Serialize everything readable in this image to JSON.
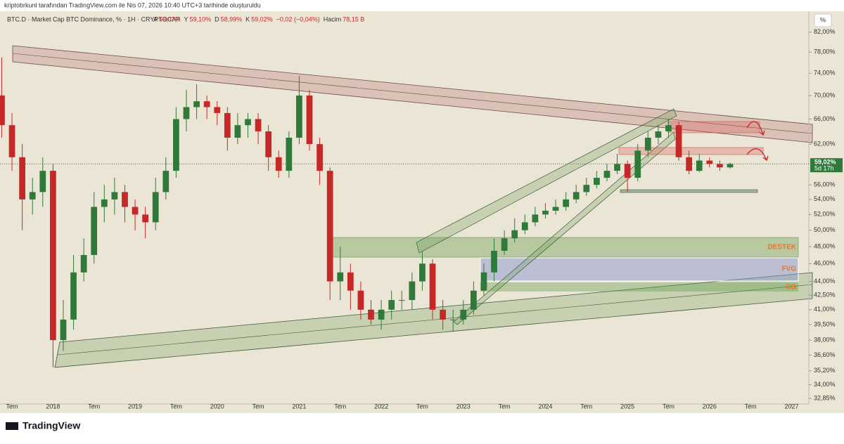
{
  "header": {
    "credit": "kriptobrkunl tarafından TradingView.com ile Nis 07, 2026 10:40 UTC+3 tarihinde oluşturuldu",
    "symbol": "BTC.D · Market Cap BTC Dominance, % · 1H · CRYPTOCAP",
    "ohlc": [
      {
        "label": "A",
        "value": "59,07%"
      },
      {
        "label": "Y",
        "value": "59,10%"
      },
      {
        "label": "D",
        "value": "58,99%"
      },
      {
        "label": "K",
        "value": "59,02%"
      }
    ],
    "change": "−0,02 (−0,04%)",
    "volume_label": "Hacim",
    "volume": "78,15 B",
    "unit_button": "%"
  },
  "chart_data": {
    "type": "candlestick",
    "log_scale": true,
    "up_color": "#2f7a3a",
    "down_color": "#c62828",
    "x": [
      2017.375,
      2017.5,
      2017.625,
      2017.75,
      2017.875,
      2018.0,
      2018.125,
      2018.25,
      2018.375,
      2018.5,
      2018.625,
      2018.75,
      2018.875,
      2019.0,
      2019.125,
      2019.25,
      2019.375,
      2019.5,
      2019.625,
      2019.75,
      2019.875,
      2020.0,
      2020.125,
      2020.25,
      2020.375,
      2020.5,
      2020.625,
      2020.75,
      2020.875,
      2021.0,
      2021.125,
      2021.25,
      2021.375,
      2021.5,
      2021.625,
      2021.75,
      2021.875,
      2022.0,
      2022.125,
      2022.25,
      2022.375,
      2022.5,
      2022.625,
      2022.75,
      2022.875,
      2023.0,
      2023.125,
      2023.25,
      2023.375,
      2023.5,
      2023.625,
      2023.75,
      2023.875,
      2024.0,
      2024.125,
      2024.25,
      2024.375,
      2024.5,
      2024.625,
      2024.75,
      2024.875,
      2025.0,
      2025.125,
      2025.25,
      2025.375,
      2025.5,
      2025.625,
      2025.75,
      2025.875,
      2026.0,
      2026.125,
      2026.25
    ],
    "open": [
      70,
      65,
      60,
      54,
      55,
      58,
      38,
      40,
      45,
      47,
      53,
      54,
      55,
      53,
      52,
      51,
      55,
      58,
      66,
      68,
      69,
      68,
      67,
      63,
      65,
      66,
      64,
      60,
      58,
      63,
      70,
      62,
      58,
      44,
      45,
      43,
      41,
      40,
      41,
      42,
      42,
      44,
      46,
      41,
      40,
      40,
      41,
      43,
      45,
      47.5,
      49,
      50,
      51,
      52,
      52.5,
      53,
      54,
      55,
      56,
      57,
      58,
      59,
      57,
      61,
      63,
      64,
      65,
      60,
      58,
      59.5,
      59,
      58.5
    ],
    "high": [
      77,
      67,
      62,
      57,
      60,
      59,
      42,
      47,
      49,
      55,
      56,
      57,
      56,
      54,
      53,
      57,
      60,
      68,
      71,
      72,
      70,
      69,
      68,
      67,
      67,
      67,
      65,
      61,
      64,
      73.5,
      71,
      63,
      58.5,
      48,
      46,
      44,
      42,
      42,
      43,
      43,
      45,
      47.5,
      46.5,
      42,
      41,
      42,
      44,
      46,
      49,
      50,
      51.5,
      52,
      53,
      53.5,
      54,
      55,
      56,
      57,
      58,
      59,
      60.5,
      59.5,
      62,
      64,
      65,
      66,
      65.5,
      61,
      60.5,
      60,
      59.5,
      59.2
    ],
    "low": [
      63,
      58,
      50,
      52,
      53,
      35.5,
      37,
      39,
      44,
      46,
      51,
      52,
      51,
      50,
      49,
      50,
      54,
      57,
      64,
      66,
      66,
      65,
      61,
      62,
      63,
      62,
      58,
      57,
      57,
      62,
      61,
      56,
      42,
      42,
      41,
      40,
      39.5,
      39,
      40,
      41,
      41,
      43,
      40,
      39,
      38.8,
      39.5,
      40.5,
      42.5,
      44,
      47,
      48.5,
      49.5,
      50.5,
      51.5,
      52,
      52.5,
      53.5,
      54.5,
      55.5,
      56.5,
      57.5,
      55,
      56.5,
      60,
      62,
      63,
      59.5,
      57.5,
      57.8,
      58.5,
      58,
      58.3
    ],
    "close": [
      65,
      60,
      54,
      55,
      58,
      38,
      40,
      45,
      47,
      53,
      54,
      55,
      53,
      52,
      51,
      55,
      58,
      66,
      68,
      69,
      68,
      67,
      63,
      65,
      66,
      64,
      60,
      58,
      63,
      70,
      62,
      58,
      44,
      45,
      43,
      41,
      40,
      41,
      42,
      42,
      44,
      46,
      41,
      40,
      40,
      41,
      43,
      45,
      47.5,
      49,
      50,
      51,
      52,
      52.5,
      53,
      54,
      55,
      56,
      57,
      58,
      59,
      57,
      61,
      63,
      64,
      65,
      60,
      58,
      59.5,
      59,
      58.5,
      59
    ],
    "xlim": [
      2017.354,
      2027.21
    ],
    "xticks": [
      {
        "value": 2017.5,
        "label": "Tem"
      },
      2018,
      {
        "value": 2018.5,
        "label": "Tem"
      },
      2019,
      {
        "value": 2019.5,
        "label": "Tem"
      },
      2020,
      {
        "value": 2020.5,
        "label": "Tem"
      },
      2021,
      {
        "value": 2021.5,
        "label": "Tem"
      },
      2022,
      {
        "value": 2022.5,
        "label": "Tem"
      },
      2023,
      {
        "value": 2023.5,
        "label": "Tem"
      },
      2024,
      {
        "value": 2024.5,
        "label": "Tem"
      },
      2025,
      {
        "value": 2025.5,
        "label": "Tem"
      },
      2026,
      {
        "value": 2026.5,
        "label": "Tem"
      },
      2027
    ],
    "ylim": [
      32.4,
      84.3
    ],
    "yticks": [
      {
        "value": 82,
        "label": "82,00%"
      },
      {
        "value": 78,
        "label": "78,00%"
      },
      {
        "value": 74,
        "label": "74,00%"
      },
      {
        "value": 70,
        "label": "70,00%"
      },
      {
        "value": 66,
        "label": "66,00%"
      },
      {
        "value": 62,
        "label": "62,00%"
      },
      {
        "value": 56,
        "label": "56,00%"
      },
      {
        "value": 54,
        "label": "54,00%"
      },
      {
        "value": 52,
        "label": "52,00%"
      },
      {
        "value": 50,
        "label": "50,00%"
      },
      {
        "value": 48,
        "label": "48,00%"
      },
      {
        "value": 46,
        "label": "46,00%"
      },
      {
        "value": 44,
        "label": "44,00%"
      },
      {
        "value": 42.5,
        "label": "42,50%"
      },
      {
        "value": 41,
        "label": "41,00%"
      },
      {
        "value": 39.5,
        "label": "39,50%"
      },
      {
        "value": 38,
        "label": "38,00%"
      },
      {
        "value": 36.6,
        "label": "36,60%"
      },
      {
        "value": 35.2,
        "label": "35,20%"
      },
      {
        "value": 34,
        "label": "34,00%"
      },
      {
        "value": 32.85,
        "label": "32,85%"
      }
    ],
    "last_price": {
      "value": 59.02,
      "label": "59,02%",
      "countdown": "5d 17h"
    },
    "annotations": [
      "DESTEK",
      "FVG",
      "OB"
    ]
  },
  "footer": {
    "logo": "TradingView"
  }
}
